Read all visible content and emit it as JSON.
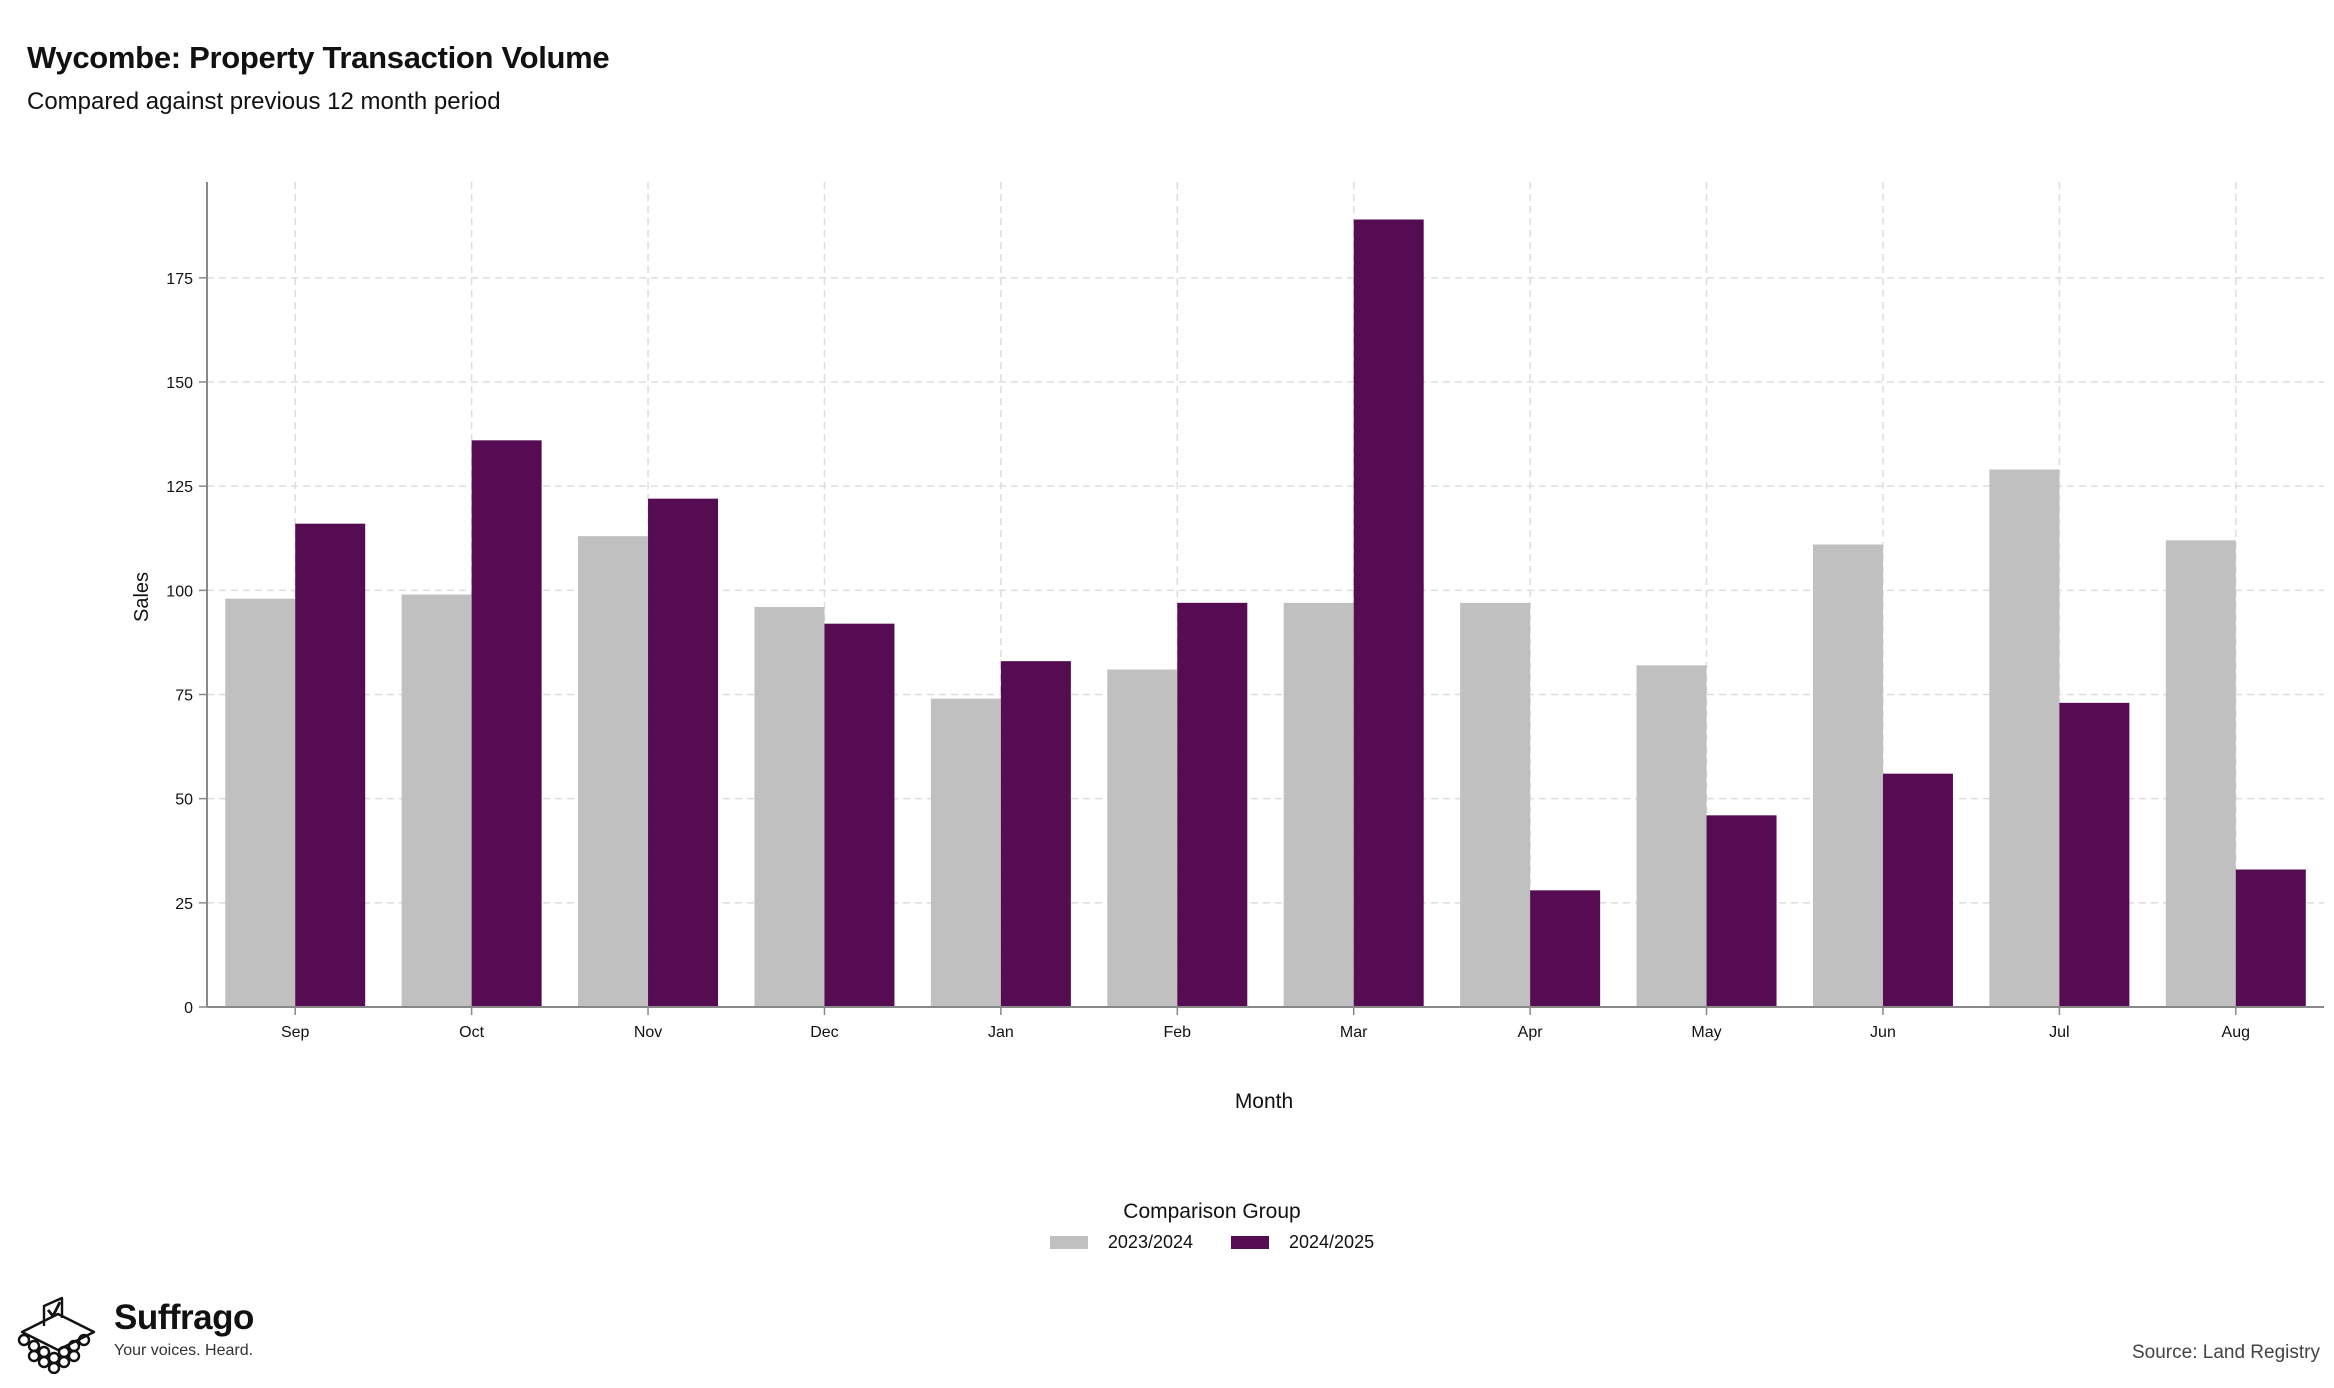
{
  "header": {
    "title": "Wycombe: Property Transaction Volume",
    "subtitle": "Compared against previous 12 month period"
  },
  "colors": {
    "series_2023_2024": "#c0c0c0",
    "series_2024_2025": "#560c53",
    "axis": "#888888",
    "grid": "#dddddd"
  },
  "chart_data": {
    "type": "bar",
    "title": "Wycombe: Property Transaction Volume",
    "subtitle": "Compared against previous 12 month period",
    "xlabel": "Month",
    "ylabel": "Sales",
    "categories": [
      "Sep",
      "Oct",
      "Nov",
      "Dec",
      "Jan",
      "Feb",
      "Mar",
      "Apr",
      "May",
      "Jun",
      "Jul",
      "Aug"
    ],
    "series": [
      {
        "name": "2023/2024",
        "values": [
          98,
          99,
          113,
          96,
          74,
          81,
          97,
          97,
          82,
          111,
          129,
          112
        ]
      },
      {
        "name": "2024/2025",
        "values": [
          116,
          136,
          122,
          92,
          83,
          97,
          189,
          28,
          46,
          56,
          73,
          33
        ]
      }
    ],
    "ylim": [
      0,
      198
    ],
    "yticks": [
      0,
      25,
      50,
      75,
      100,
      125,
      150,
      175
    ],
    "grid": true,
    "legend_title": "Comparison Group",
    "legend_position": "bottom"
  },
  "legend": {
    "title": "Comparison Group",
    "items": [
      "2023/2024",
      "2024/2025"
    ]
  },
  "branding": {
    "name": "Suffrago",
    "tagline": "Your voices. Heard.",
    "logo_icon": "ballot-box-crowd-icon"
  },
  "source": "Source: Land Registry"
}
